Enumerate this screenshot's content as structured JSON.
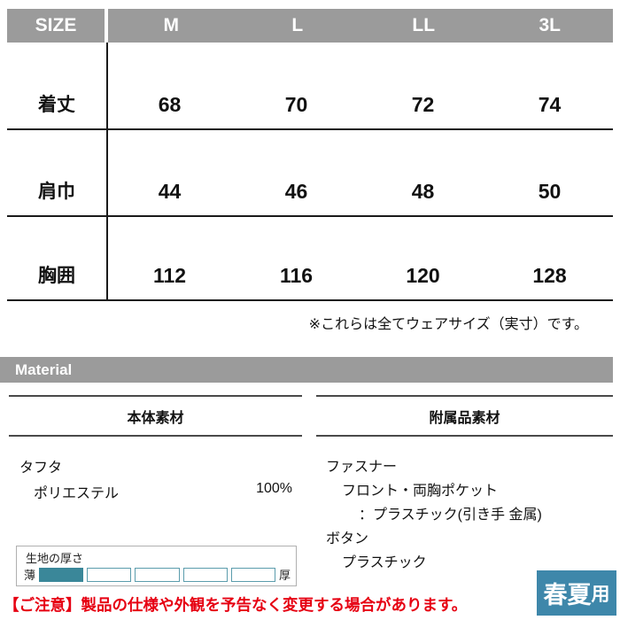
{
  "size_table": {
    "header": [
      "SIZE",
      "M",
      "L",
      "LL",
      "3L"
    ],
    "rows": [
      {
        "label": "着丈",
        "values": [
          "68",
          "70",
          "72",
          "74"
        ]
      },
      {
        "label": "肩巾",
        "values": [
          "44",
          "46",
          "48",
          "50"
        ]
      },
      {
        "label": "胸囲",
        "values": [
          "112",
          "116",
          "120",
          "128"
        ]
      }
    ],
    "note": "※これらは全てウェアサイズ（実寸）です。"
  },
  "material": {
    "bar_label": "Material",
    "left": {
      "header": "本体素材",
      "line1": "タフタ",
      "line2_text": "ポリエステル",
      "line2_value": "100%"
    },
    "right": {
      "header": "附属品素材",
      "lines": [
        "ファスナー",
        "フロント・両胸ポケット",
        "：プラスチック(引き手 金属)",
        "ボタン",
        "プラスチック"
      ]
    }
  },
  "thickness": {
    "title": "生地の厚さ",
    "min_label": "薄",
    "max_label": "厚",
    "segments": 5,
    "filled": 1,
    "fill_color": "#3a8799"
  },
  "season_badge": {
    "text_main": "春夏",
    "text_sub": "用",
    "bg": "#3e87aa"
  },
  "notice": "【ご注意】製品の仕様や外観を予告なく変更する場合があります。",
  "colors": {
    "header_gray": "#9b9b9b",
    "notice_red": "#e60012",
    "table_line": "#1a1a1a"
  }
}
